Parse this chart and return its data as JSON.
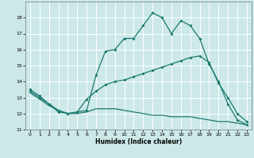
{
  "xlabel": "Humidex (Indice chaleur)",
  "xlim": [
    -0.5,
    23.5
  ],
  "ylim": [
    11,
    19
  ],
  "yticks": [
    11,
    12,
    13,
    14,
    15,
    16,
    17,
    18
  ],
  "xticks": [
    0,
    1,
    2,
    3,
    4,
    5,
    6,
    7,
    8,
    9,
    10,
    11,
    12,
    13,
    14,
    15,
    16,
    17,
    18,
    19,
    20,
    21,
    22,
    23
  ],
  "bg_color": "#cce8e8",
  "grid_color": "#ffffff",
  "line_color": "#1a7a6e",
  "line1_x": [
    0,
    1,
    2,
    3,
    4,
    5,
    6,
    7,
    8,
    9,
    10,
    11,
    12,
    13,
    14,
    15,
    16,
    17,
    18,
    19,
    20,
    21,
    22,
    23
  ],
  "line1_y": [
    13.5,
    13.1,
    12.6,
    12.1,
    12.0,
    12.1,
    12.2,
    14.4,
    15.9,
    16.0,
    16.7,
    16.7,
    17.5,
    18.3,
    18.0,
    17.0,
    17.8,
    17.5,
    16.7,
    15.1,
    14.0,
    12.6,
    11.6,
    11.3
  ],
  "line2_x": [
    0,
    1,
    2,
    3,
    4,
    5,
    6,
    7,
    8,
    9,
    10,
    11,
    12,
    13,
    14,
    15,
    16,
    17,
    18,
    19,
    20,
    21,
    22,
    23
  ],
  "line2_y": [
    13.4,
    13.0,
    12.6,
    12.2,
    12.0,
    12.1,
    12.9,
    13.4,
    13.8,
    14.0,
    14.1,
    14.3,
    14.5,
    14.7,
    14.9,
    15.1,
    15.3,
    15.5,
    15.6,
    15.2,
    13.9,
    13.0,
    12.0,
    11.5
  ],
  "line3_x": [
    0,
    1,
    2,
    3,
    4,
    5,
    6,
    7,
    8,
    9,
    10,
    11,
    12,
    13,
    14,
    15,
    16,
    17,
    18,
    19,
    20,
    21,
    22,
    23
  ],
  "line3_y": [
    13.3,
    12.9,
    12.5,
    12.2,
    12.0,
    12.0,
    12.1,
    12.3,
    12.3,
    12.3,
    12.2,
    12.1,
    12.0,
    11.9,
    11.9,
    11.8,
    11.8,
    11.8,
    11.7,
    11.6,
    11.5,
    11.5,
    11.4,
    11.3
  ]
}
